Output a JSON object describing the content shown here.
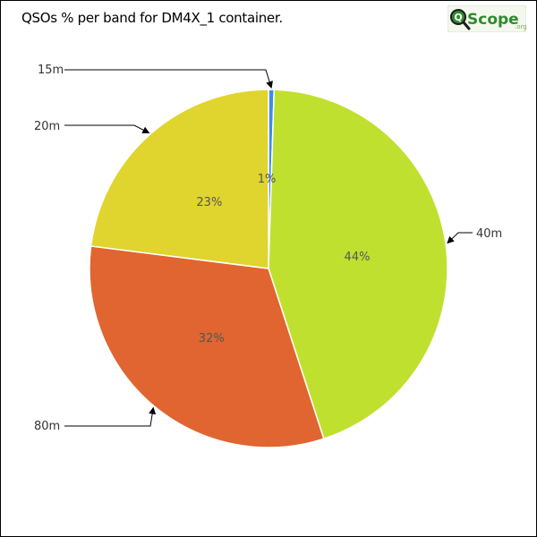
{
  "title": "QSOs % per band for DM4X_1 container.",
  "logo": {
    "text": "QScope",
    "suffix": ".org"
  },
  "chart_data": {
    "type": "pie",
    "title": "QSOs % per band for DM4X_1 container.",
    "slices": [
      {
        "label": "15m",
        "value": 0.5,
        "display": "",
        "color": "#3a8ee6"
      },
      {
        "label": "40m",
        "value": 44.5,
        "display": "44%",
        "color": "#c0e030"
      },
      {
        "label": "80m",
        "value": 32.0,
        "display": "32%",
        "color": "#e06530"
      },
      {
        "label": "20m",
        "value": 23.0,
        "display": "23%",
        "color": "#e0d42e"
      }
    ],
    "small_slice_label": "1%"
  },
  "colors": {
    "logo_green": "#2e8b2e",
    "border": "#000000"
  }
}
